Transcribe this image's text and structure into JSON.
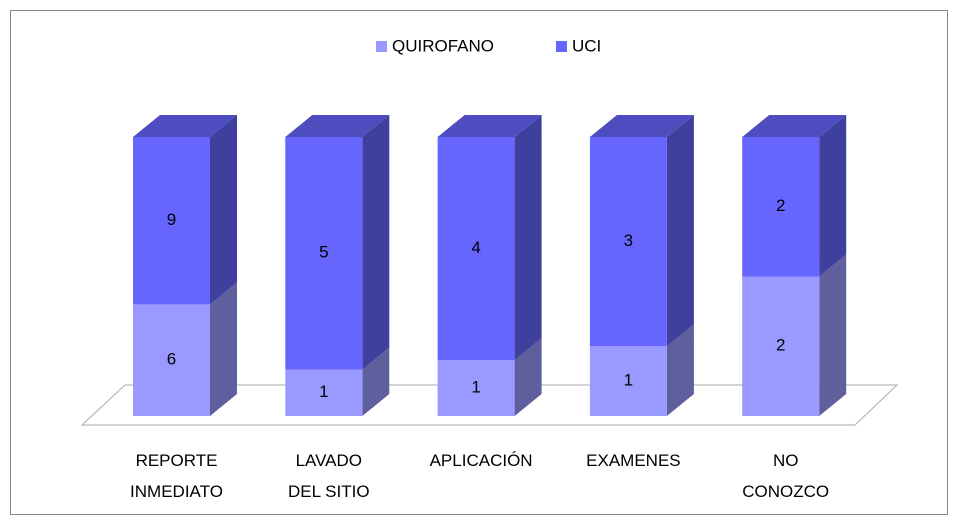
{
  "chart_data": {
    "type": "bar3d_stacked_percent",
    "categories": [
      "REPORTE INMEDIATO",
      "LAVADO DEL SITIO",
      "APLICACIÓN",
      "EXAMENES",
      "NO CONOZCO"
    ],
    "series": [
      {
        "name": "QUIROFANO",
        "color": "#9999ff",
        "values": [
          6,
          1,
          1,
          1,
          2
        ]
      },
      {
        "name": "UCI",
        "color": "#6666ff",
        "values": [
          9,
          5,
          4,
          3,
          2
        ]
      }
    ],
    "legend": "top"
  }
}
